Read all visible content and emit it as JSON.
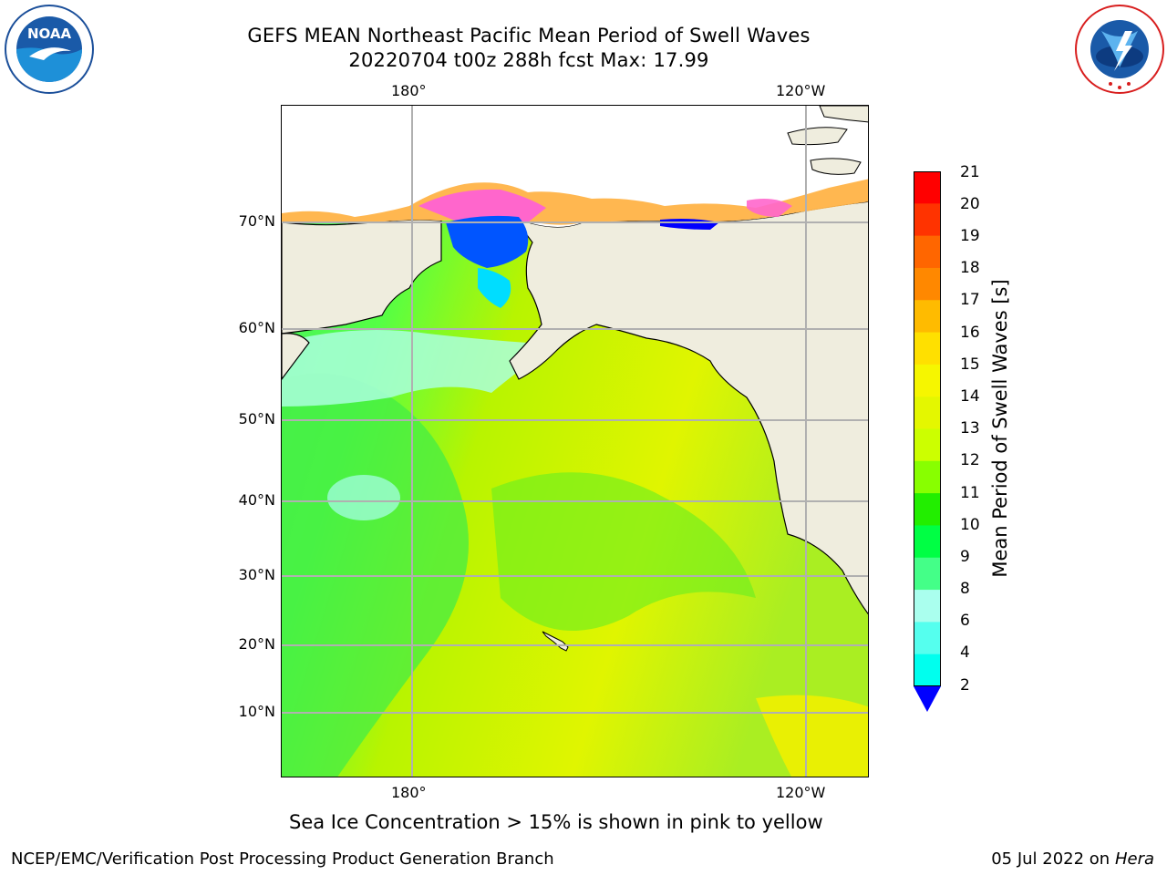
{
  "header": {
    "title_line1": "GEFS MEAN Northeast Pacific Mean Period of Swell Waves",
    "title_line2": "20220704 t00z 288h fcst   Max: 17.99"
  },
  "logos": {
    "left": {
      "name": "noaa-logo",
      "text": "NOAA",
      "ring_text": "NATIONAL OCEANIC AND ATMOSPHERIC ADMINISTRATION · U.S. DEPARTMENT OF COMMERCE"
    },
    "right": {
      "name": "nws-logo",
      "ring_text": "NATIONAL WEATHER SERVICE"
    }
  },
  "map": {
    "lon_labels_top": [
      "180°",
      "120°W"
    ],
    "lon_labels_bottom": [
      "180°",
      "120°W"
    ],
    "lat_labels": [
      "70°N",
      "60°N",
      "50°N",
      "40°N",
      "30°N",
      "20°N",
      "10°N"
    ],
    "colors": {
      "land": "#efedde",
      "gridline": "#b0b0b0",
      "coast": "#000000",
      "ice_pink": "#ff66cc",
      "ice_orange": "#ffb347"
    }
  },
  "colorbar": {
    "label": "Mean Period of Swell Waves [s]",
    "ticks": [
      "21",
      "20",
      "19",
      "18",
      "17",
      "16",
      "15",
      "14",
      "13",
      "12",
      "11",
      "10",
      "9",
      "8",
      "6",
      "4",
      "2"
    ],
    "colors": [
      "#ff0000",
      "#ff3300",
      "#ff6600",
      "#ff8800",
      "#ffbb00",
      "#ffe000",
      "#f6f600",
      "#e4f700",
      "#ccff00",
      "#88ff00",
      "#22ee00",
      "#00ff44",
      "#44ff88",
      "#aaffee",
      "#55ffee",
      "#00ffee",
      "#00bbff",
      "#0066ff"
    ],
    "extend_color": "#0000ff"
  },
  "footnote": "Sea Ice Concentration > 15% is shown in pink to yellow",
  "footer": {
    "left": "NCEP/EMC/Verification Post Processing Product Generation Branch",
    "right_date": "05 Jul 2022 on",
    "right_host": "Hera"
  }
}
